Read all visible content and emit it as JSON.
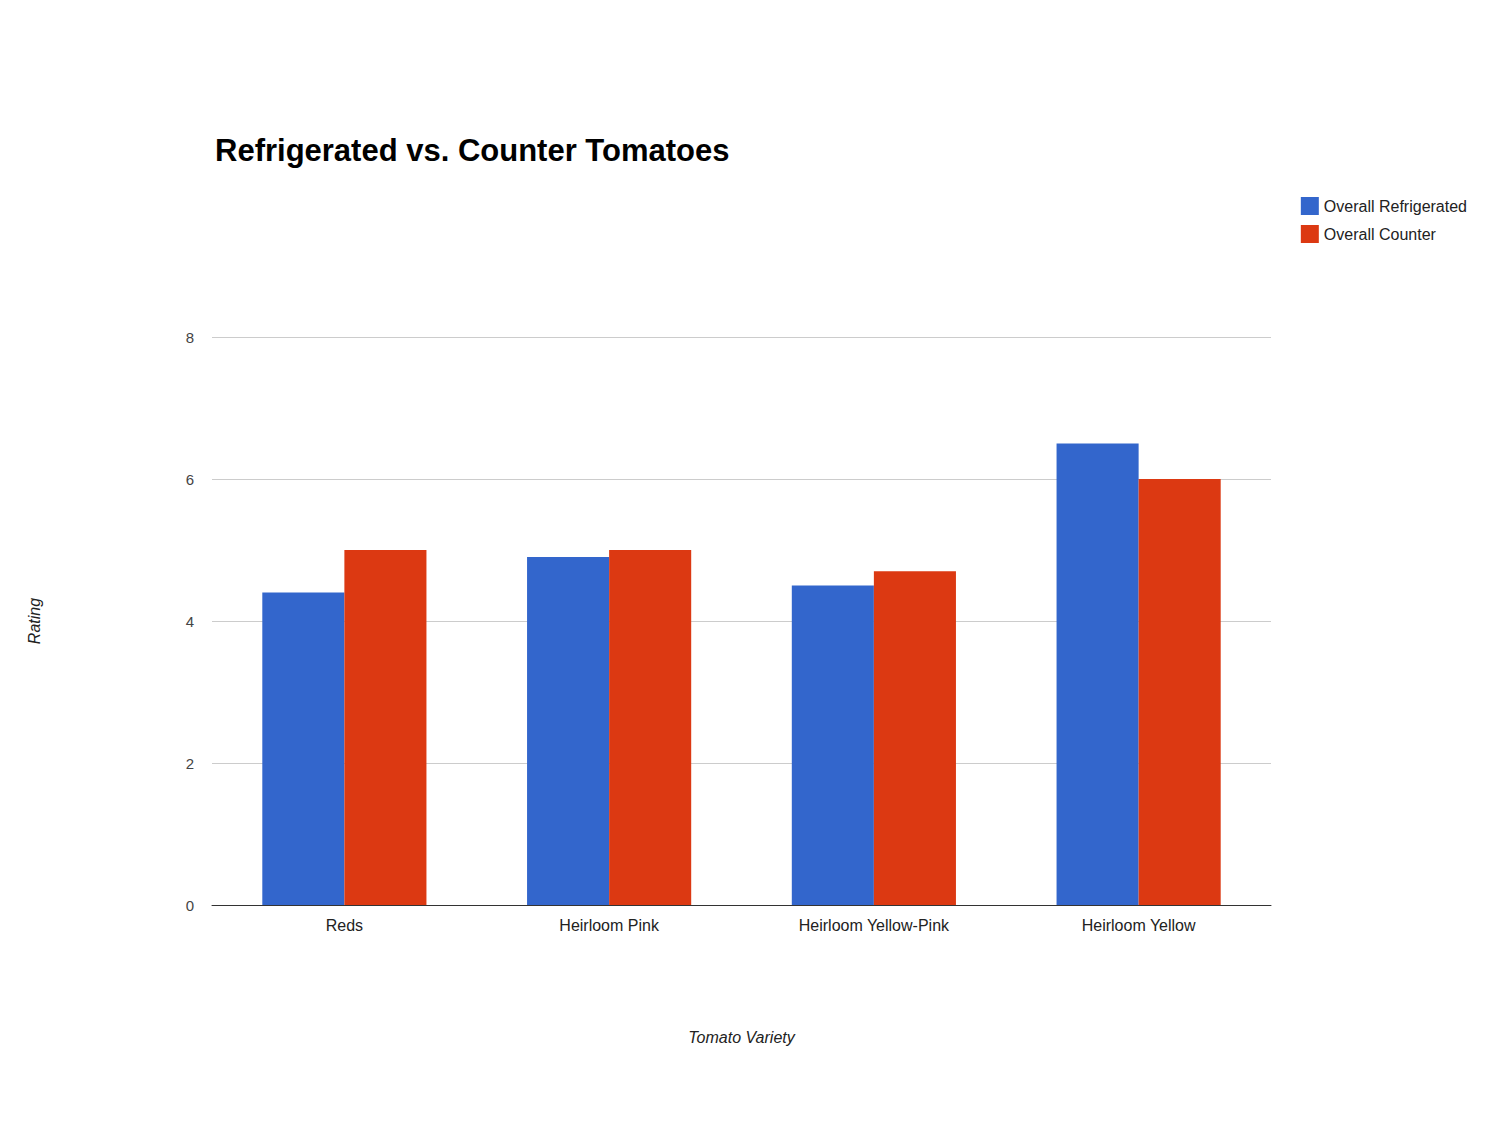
{
  "chart_data": {
    "type": "bar",
    "title": "Refrigerated vs. Counter Tomatoes",
    "xlabel": "Tomato Variety",
    "ylabel": "Rating",
    "categories": [
      "Reds",
      "Heirloom Pink",
      "Heirloom Yellow-Pink",
      "Heirloom Yellow"
    ],
    "series": [
      {
        "name": "Overall Refrigerated",
        "color": "#3366cc",
        "values": [
          4.4,
          4.9,
          4.5,
          6.5
        ]
      },
      {
        "name": "Overall Counter",
        "color": "#dc3912",
        "values": [
          5.0,
          5.0,
          4.7,
          6.0
        ]
      }
    ],
    "ylim": [
      0,
      8
    ],
    "yticks": [
      0,
      2,
      4,
      6,
      8
    ],
    "grid": true,
    "legend": "top-right"
  }
}
